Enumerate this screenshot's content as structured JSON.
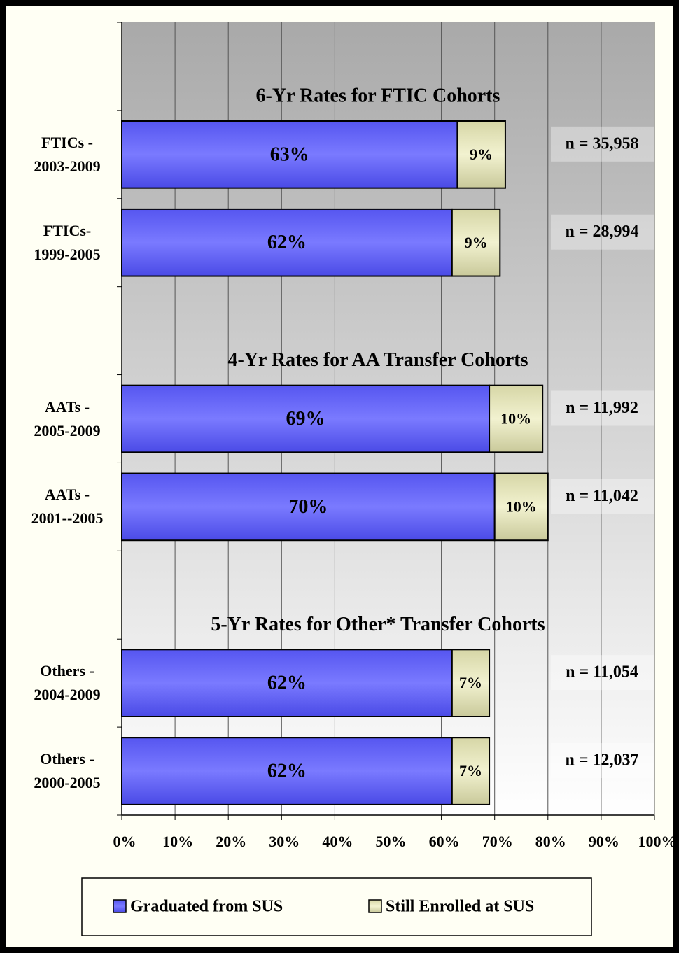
{
  "chart_data": {
    "type": "stacked-barh",
    "categories": [
      null,
      "FTICs -\n2003-2009",
      "FTICs-\n1999-2005",
      null,
      "AATs -\n2005-2009",
      "AATs -\n2001--2005",
      null,
      "Others -\n2004-2009",
      "Others -\n2000-2005"
    ],
    "series": [
      {
        "name": "Graduated from SUS",
        "color": "#6b6bff",
        "values": [
          null,
          63,
          62,
          null,
          69,
          70,
          null,
          62,
          62
        ],
        "value_labels": [
          null,
          "63%",
          "62%",
          null,
          "69%",
          "70%",
          null,
          "62%",
          "62%"
        ]
      },
      {
        "name": "Still Enrolled at SUS",
        "color": "#e6e6bf",
        "values": [
          null,
          9,
          9,
          null,
          10,
          10,
          null,
          7,
          7
        ],
        "value_labels": [
          null,
          "9%",
          "9%",
          null,
          "10%",
          "10%",
          null,
          "7%",
          "7%"
        ]
      }
    ],
    "n_labels": [
      null,
      "n = 35,958",
      "n = 28,994",
      null,
      "n = 11,992",
      "n = 11,042",
      null,
      "n = 11,054",
      "n = 12,037"
    ],
    "section_titles": [
      "6-Yr Rates for FTIC Cohorts",
      null,
      null,
      "4-Yr Rates for AA Transfer Cohorts",
      null,
      null,
      "5-Yr Rates for Other* Transfer Cohorts",
      null,
      null
    ],
    "xlim": [
      0,
      100
    ],
    "xticks": [
      {
        "value": 0,
        "label": "0%"
      },
      {
        "value": 10,
        "label": "10%"
      },
      {
        "value": 20,
        "label": "20%"
      },
      {
        "value": 30,
        "label": "30%"
      },
      {
        "value": 40,
        "label": "40%"
      },
      {
        "value": 50,
        "label": "50%"
      },
      {
        "value": 60,
        "label": "60%"
      },
      {
        "value": 70,
        "label": "70%"
      },
      {
        "value": 80,
        "label": "80%"
      },
      {
        "value": 90,
        "label": "90%"
      },
      {
        "value": 100,
        "label": "100%"
      }
    ],
    "grid": true,
    "legend": "bottom"
  }
}
